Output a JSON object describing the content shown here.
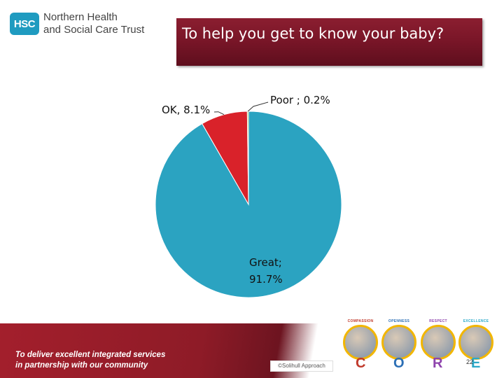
{
  "logo": {
    "badge": "HSC",
    "line1": "Northern Health",
    "line2": "and Social Care Trust"
  },
  "title": "To help you get to know your baby?",
  "chart_data": {
    "type": "pie",
    "title": "To help you get to know your baby?",
    "slices": [
      {
        "label": "Great",
        "value": 91.7,
        "display": "Great; 91.7%",
        "color": "#2ba3c1"
      },
      {
        "label": "OK",
        "value": 8.1,
        "display": "OK, 8.1%",
        "color": "#d9222a"
      },
      {
        "label": "Poor",
        "value": 0.2,
        "display": "Poor ; 0.2%",
        "color": "#8bbf3c"
      }
    ]
  },
  "footer": {
    "tagline_line1": "To deliver excellent integrated services",
    "tagline_line2": "in partnership with our community",
    "credit": "©Solihull Approach",
    "page_number": "22"
  },
  "core": [
    {
      "label": "COMPASSION",
      "letter": "C",
      "color": "#c0392b"
    },
    {
      "label": "OPENNESS",
      "letter": "O",
      "color": "#2c6fb5"
    },
    {
      "label": "RESPECT",
      "letter": "R",
      "color": "#8e44ad"
    },
    {
      "label": "EXCELLENCE",
      "letter": "E",
      "color": "#2aa9c9"
    }
  ]
}
